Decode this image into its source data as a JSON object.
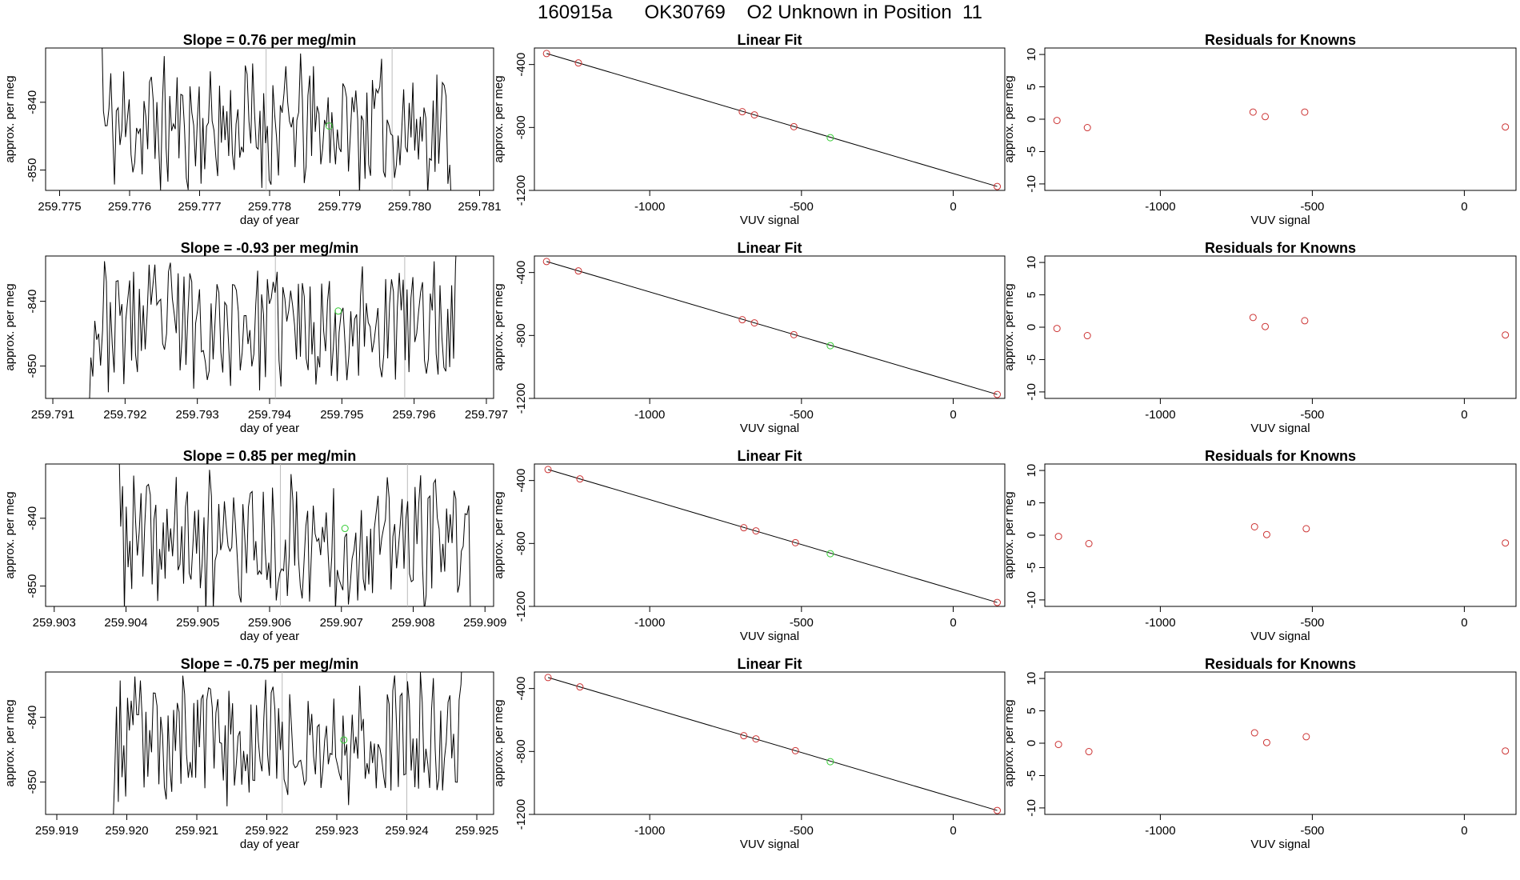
{
  "page_title": "160915a      OK30769    O2 Unknown in Position  11",
  "colors": {
    "axis": "#000000",
    "trace": "#000000",
    "known": "#cc3333",
    "unknown": "#33cc33",
    "vline": "#bbbbbb",
    "fit": "#000000"
  },
  "chart_data": [
    {
      "type": "line",
      "panel": "timeseries",
      "row": 1,
      "title": "Slope =  0.76  per meg/min",
      "xlabel": "day of year",
      "ylabel": "approx. per meg",
      "xlim": [
        259.7748,
        259.7812
      ],
      "ylim": [
        -853,
        -832
      ],
      "xticks": [
        "259.775",
        "259.776",
        "259.777",
        "259.778",
        "259.779",
        "259.780",
        "259.781"
      ],
      "yticks": [
        -840,
        -850
      ],
      "vlines": [
        259.77795,
        259.77975
      ],
      "x_start": 259.7756,
      "x_end": 259.7806,
      "seed": 11,
      "y_first": -828,
      "y_last": -856,
      "trace_mean": -843.5,
      "trace_amp": 5.5,
      "unknown_point": {
        "x": 259.77885,
        "y": -843.5
      }
    },
    {
      "type": "scatter",
      "panel": "linear-fit",
      "row": 1,
      "title": "Linear Fit",
      "xlabel": "VUV signal",
      "ylabel": "approx. per meg",
      "xlim": [
        -1380,
        170
      ],
      "ylim": [
        -1200,
        -295
      ],
      "xticks": [
        -1000,
        -500,
        0
      ],
      "yticks": [
        -400,
        -800,
        -1200
      ],
      "knowns": [
        {
          "x": -1340,
          "y": -330
        },
        {
          "x": -1235,
          "y": -390
        },
        {
          "x": -695,
          "y": -700
        },
        {
          "x": -655,
          "y": -720
        },
        {
          "x": -525,
          "y": -795
        },
        {
          "x": 145,
          "y": -1175
        }
      ],
      "unknown": {
        "x": -405,
        "y": -865
      },
      "fit_line": {
        "x0": -1340,
        "y0": -330,
        "x1": 145,
        "y1": -1175
      }
    },
    {
      "type": "scatter",
      "panel": "residuals",
      "row": 1,
      "title": "Residuals for Knowns",
      "xlabel": "VUV signal",
      "ylabel": "approx. per meg",
      "xlim": [
        -1380,
        170
      ],
      "ylim": [
        -11,
        11
      ],
      "xticks": [
        -1000,
        -500,
        0
      ],
      "yticks": [
        10,
        5,
        0,
        -5,
        -10
      ],
      "points": [
        {
          "x": -1340,
          "y": -0.2
        },
        {
          "x": -1240,
          "y": -1.3
        },
        {
          "x": -695,
          "y": 1.1
        },
        {
          "x": -655,
          "y": 0.4
        },
        {
          "x": -525,
          "y": 1.1
        },
        {
          "x": 135,
          "y": -1.2
        }
      ]
    },
    {
      "type": "line",
      "panel": "timeseries",
      "row": 2,
      "title": "Slope =  -0.93  per meg/min",
      "xlabel": "day of year",
      "ylabel": "approx. per meg",
      "xlim": [
        259.7909,
        259.7971
      ],
      "ylim": [
        -855,
        -833
      ],
      "xticks": [
        "259.791",
        "259.792",
        "259.793",
        "259.794",
        "259.795",
        "259.796",
        "259.797"
      ],
      "yticks": [
        -840,
        -850
      ],
      "vlines": [
        259.79408,
        259.79587
      ],
      "x_start": 259.7915,
      "x_end": 259.7966,
      "seed": 23,
      "y_first": -858,
      "y_last": -828,
      "trace_mean": -843.5,
      "trace_amp": 5.5,
      "unknown_point": {
        "x": 259.79495,
        "y": -841.5
      }
    },
    {
      "type": "scatter",
      "panel": "linear-fit",
      "row": 2,
      "title": "Linear Fit",
      "xlabel": "VUV signal",
      "ylabel": "approx. per meg",
      "xlim": [
        -1380,
        170
      ],
      "ylim": [
        -1200,
        -295
      ],
      "xticks": [
        -1000,
        -500,
        0
      ],
      "yticks": [
        -400,
        -800,
        -1200
      ],
      "knowns": [
        {
          "x": -1340,
          "y": -330
        },
        {
          "x": -1235,
          "y": -390
        },
        {
          "x": -695,
          "y": -700
        },
        {
          "x": -655,
          "y": -720
        },
        {
          "x": -525,
          "y": -795
        },
        {
          "x": 145,
          "y": -1175
        }
      ],
      "unknown": {
        "x": -405,
        "y": -865
      },
      "fit_line": {
        "x0": -1340,
        "y0": -330,
        "x1": 145,
        "y1": -1175
      }
    },
    {
      "type": "scatter",
      "panel": "residuals",
      "row": 2,
      "title": "Residuals for Knowns",
      "xlabel": "VUV signal",
      "ylabel": "approx. per meg",
      "xlim": [
        -1380,
        170
      ],
      "ylim": [
        -11,
        11
      ],
      "xticks": [
        -1000,
        -500,
        0
      ],
      "yticks": [
        10,
        5,
        0,
        -5,
        -10
      ],
      "points": [
        {
          "x": -1340,
          "y": -0.2
        },
        {
          "x": -1240,
          "y": -1.3
        },
        {
          "x": -695,
          "y": 1.5
        },
        {
          "x": -655,
          "y": 0.1
        },
        {
          "x": -525,
          "y": 1.0
        },
        {
          "x": 135,
          "y": -1.2
        }
      ]
    },
    {
      "type": "line",
      "panel": "timeseries",
      "row": 3,
      "title": "Slope =  0.85  per meg/min",
      "xlabel": "day of year",
      "ylabel": "approx. per meg",
      "xlim": [
        259.90288,
        259.90912
      ],
      "ylim": [
        -853,
        -832
      ],
      "xticks": [
        "259.903",
        "259.904",
        "259.905",
        "259.906",
        "259.907",
        "259.908",
        "259.909"
      ],
      "yticks": [
        -840,
        -850
      ],
      "vlines": [
        259.90615,
        259.90792
      ],
      "x_start": 259.9039,
      "x_end": 259.9088,
      "seed": 37,
      "y_first": -828,
      "y_last": -856,
      "trace_mean": -843.5,
      "trace_amp": 5.5,
      "unknown_point": {
        "x": 259.90705,
        "y": -841.5
      }
    },
    {
      "type": "scatter",
      "panel": "linear-fit",
      "row": 3,
      "title": "Linear Fit",
      "xlabel": "VUV signal",
      "ylabel": "approx. per meg",
      "xlim": [
        -1380,
        170
      ],
      "ylim": [
        -1200,
        -295
      ],
      "xticks": [
        -1000,
        -500,
        0
      ],
      "yticks": [
        -400,
        -800,
        -1200
      ],
      "knowns": [
        {
          "x": -1335,
          "y": -330
        },
        {
          "x": -1230,
          "y": -390
        },
        {
          "x": -690,
          "y": -700
        },
        {
          "x": -650,
          "y": -720
        },
        {
          "x": -520,
          "y": -795
        },
        {
          "x": 145,
          "y": -1175
        }
      ],
      "unknown": {
        "x": -405,
        "y": -865
      },
      "fit_line": {
        "x0": -1335,
        "y0": -330,
        "x1": 145,
        "y1": -1175
      }
    },
    {
      "type": "scatter",
      "panel": "residuals",
      "row": 3,
      "title": "Residuals for Knowns",
      "xlabel": "VUV signal",
      "ylabel": "approx. per meg",
      "xlim": [
        -1380,
        170
      ],
      "ylim": [
        -11,
        11
      ],
      "xticks": [
        -1000,
        -500,
        0
      ],
      "yticks": [
        10,
        5,
        0,
        -5,
        -10
      ],
      "points": [
        {
          "x": -1335,
          "y": -0.2
        },
        {
          "x": -1235,
          "y": -1.3
        },
        {
          "x": -690,
          "y": 1.3
        },
        {
          "x": -650,
          "y": 0.1
        },
        {
          "x": -520,
          "y": 1.0
        },
        {
          "x": 135,
          "y": -1.2
        }
      ]
    },
    {
      "type": "line",
      "panel": "timeseries",
      "row": 4,
      "title": "Slope =  -0.75  per meg/min",
      "xlabel": "day of year",
      "ylabel": "approx. per meg",
      "xlim": [
        259.91884,
        259.92524
      ],
      "ylim": [
        -855,
        -833
      ],
      "xticks": [
        "259.919",
        "259.920",
        "259.921",
        "259.922",
        "259.923",
        "259.924",
        "259.925"
      ],
      "yticks": [
        -840,
        -850
      ],
      "vlines": [
        259.92222,
        259.924
      ],
      "x_start": 259.9198,
      "x_end": 259.9248,
      "seed": 53,
      "y_first": -858,
      "y_last": -828,
      "trace_mean": -843.5,
      "trace_amp": 5.5,
      "unknown_point": {
        "x": 259.9231,
        "y": -843.5
      }
    },
    {
      "type": "scatter",
      "panel": "linear-fit",
      "row": 4,
      "title": "Linear Fit",
      "xlabel": "VUV signal",
      "ylabel": "approx. per meg",
      "xlim": [
        -1380,
        170
      ],
      "ylim": [
        -1200,
        -295
      ],
      "xticks": [
        -1000,
        -500,
        0
      ],
      "yticks": [
        -400,
        -800,
        -1200
      ],
      "knowns": [
        {
          "x": -1335,
          "y": -330
        },
        {
          "x": -1230,
          "y": -390
        },
        {
          "x": -690,
          "y": -700
        },
        {
          "x": -650,
          "y": -720
        },
        {
          "x": -520,
          "y": -795
        },
        {
          "x": 145,
          "y": -1175
        }
      ],
      "unknown": {
        "x": -405,
        "y": -865
      },
      "fit_line": {
        "x0": -1335,
        "y0": -330,
        "x1": 145,
        "y1": -1175
      }
    },
    {
      "type": "scatter",
      "panel": "residuals",
      "row": 4,
      "title": "Residuals for Knowns",
      "xlabel": "VUV signal",
      "ylabel": "approx. per meg",
      "xlim": [
        -1380,
        170
      ],
      "ylim": [
        -11,
        11
      ],
      "xticks": [
        -1000,
        -500,
        0
      ],
      "yticks": [
        10,
        5,
        0,
        -5,
        -10
      ],
      "points": [
        {
          "x": -1335,
          "y": -0.2
        },
        {
          "x": -1235,
          "y": -1.3
        },
        {
          "x": -690,
          "y": 1.6
        },
        {
          "x": -650,
          "y": 0.1
        },
        {
          "x": -520,
          "y": 1.0
        },
        {
          "x": 135,
          "y": -1.2
        }
      ]
    }
  ]
}
